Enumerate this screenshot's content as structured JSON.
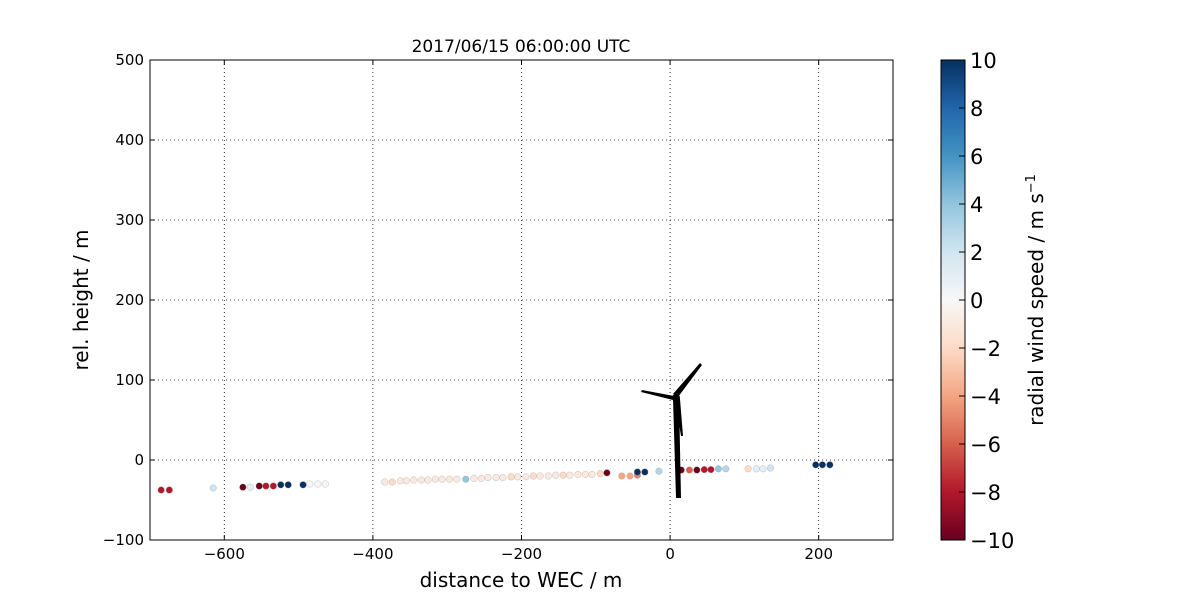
{
  "chart_data": {
    "type": "scatter",
    "title": "2017/06/15 06:00:00 UTC",
    "xlabel": "distance to WEC / m",
    "ylabel": "rel. height / m",
    "colorbar_label": "radial wind speed / m s",
    "colorbar_label_sup": "−1",
    "xlim": [
      -700,
      300
    ],
    "ylim": [
      -100,
      500
    ],
    "xticks": [
      {
        "value": -600,
        "label": "−600"
      },
      {
        "value": -400,
        "label": "−400"
      },
      {
        "value": -200,
        "label": "−200"
      },
      0,
      200
    ],
    "yticks": [
      {
        "value": -100,
        "label": "−100"
      },
      0,
      100,
      200,
      300,
      400,
      500
    ],
    "clim": [
      -10,
      10
    ],
    "cticks": [
      {
        "value": -10,
        "label": "−10"
      },
      {
        "value": -8,
        "label": "−8"
      },
      {
        "value": -6,
        "label": "−6"
      },
      {
        "value": -4,
        "label": "−4"
      },
      {
        "value": -2,
        "label": "−2"
      },
      0,
      2,
      4,
      6,
      8,
      10
    ],
    "colormap": [
      "#67001f",
      "#b2182b",
      "#d6604d",
      "#f4a582",
      "#fddbc7",
      "#f7f7f7",
      "#d1e5f0",
      "#92c5de",
      "#4393c3",
      "#2166ac",
      "#053061"
    ],
    "grid": true,
    "x": [
      -685,
      -674,
      -615,
      -575,
      -565,
      -553,
      -544,
      -534,
      -524,
      -514,
      -494,
      -485,
      -474,
      -464,
      -384,
      -374,
      -363,
      -355,
      -345,
      -335,
      -326,
      -316,
      -307,
      -297,
      -287,
      -275,
      -264,
      -254,
      -245,
      -234,
      -225,
      -214,
      -205,
      -194,
      -184,
      -175,
      -164,
      -154,
      -144,
      -135,
      -124,
      -114,
      -105,
      -94,
      -85,
      -65,
      -54,
      -44,
      -44,
      -34,
      -15,
      15,
      26,
      36,
      46,
      55,
      65,
      75,
      105,
      116,
      125,
      135,
      196,
      205,
      215
    ],
    "y": [
      -37.5,
      -37.5,
      -35,
      -34,
      -34,
      -32.5,
      -32.5,
      -32.5,
      -31,
      -31,
      -31,
      -30,
      -30,
      -30,
      -27.5,
      -27.5,
      -26,
      -26,
      -25,
      -25,
      -25,
      -24,
      -24,
      -24,
      -24,
      -24,
      -23,
      -23,
      -22,
      -22,
      -22,
      -21,
      -21,
      -21,
      -20,
      -20,
      -20,
      -19,
      -19,
      -19,
      -18,
      -18,
      -18,
      -17,
      -16,
      -20,
      -20,
      -19,
      -15,
      -15,
      -14,
      -12.5,
      -12.5,
      -12.5,
      -12,
      -12,
      -11,
      -11,
      -11,
      -11,
      -11,
      -10,
      -6,
      -6,
      -6
    ],
    "c": [
      -8,
      -8,
      2,
      -10,
      1,
      -10,
      -8,
      -8,
      10,
      10,
      10,
      0,
      0,
      0,
      -1,
      -2,
      -1,
      -1,
      -1,
      -1,
      -1,
      -1,
      -1,
      -1,
      -1,
      4,
      -1,
      -1,
      -1,
      -1,
      -1,
      -2,
      -1,
      -1,
      -2,
      -1,
      -1,
      -1,
      -2,
      -1,
      -1,
      -1,
      -1,
      -2,
      -10,
      -4,
      -4,
      -5,
      10,
      10,
      3,
      -10,
      -6,
      -10,
      -8,
      -8,
      4,
      3,
      -2,
      1,
      1,
      2,
      10,
      10,
      10
    ]
  }
}
